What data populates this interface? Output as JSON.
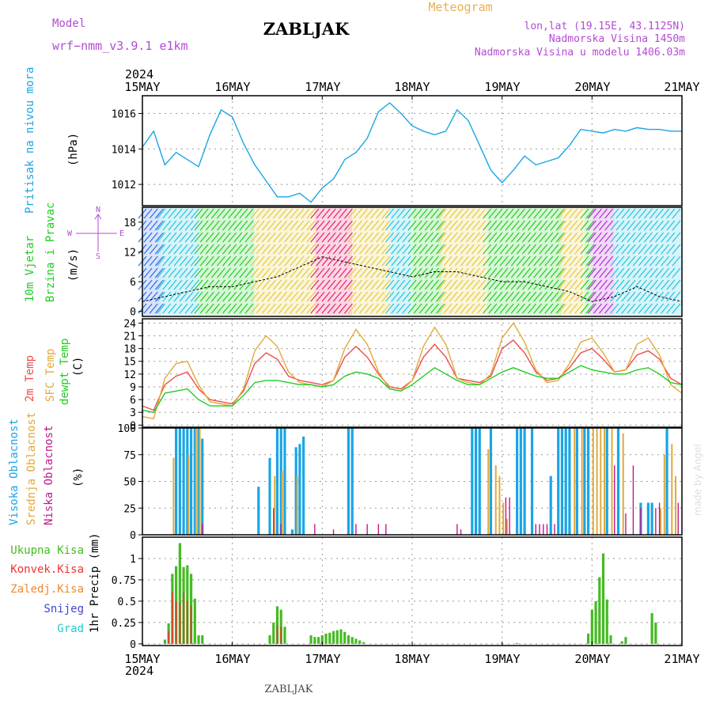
{
  "header": {
    "model_label": "Model",
    "model_name": "wrf−nmm_v3.9.1 e1km",
    "station": "ZABLJAK",
    "product": "Meteogram",
    "lonlat": "lon,lat (19.15E, 43.1125N)",
    "elevation": "Nadmorska Visina 1450m",
    "model_elevation": "Nadmorska Visina u modelu 1406.03m",
    "year": "2024",
    "footer_station": "ZABLJAK",
    "credit": "made by Angel"
  },
  "colors": {
    "pressure": "#1aa5e6",
    "wind_speed": "#000000",
    "temp_2m": "#ef4b4b",
    "temp_sfc": "#e0aa3a",
    "dewpoint": "#22cc22",
    "cloud_high": "#1aa5e6",
    "cloud_mid": "#e0aa3a",
    "cloud_low": "#c0188c",
    "precip_total": "#44bb22",
    "precip_conv": "#ee3333",
    "precip_frozen": "#ee8833",
    "precip_snow": "#4444cc",
    "precip_graupel": "#22cccc",
    "label_purple": "#b44ad6",
    "label_orange": "#e8b050"
  },
  "chart_data": [
    {
      "type": "line",
      "panel": "pressure",
      "ylabel_left": "Pritisak na nivou mora",
      "ylabel_unit": "(hPa)",
      "ylim": [
        1010.8,
        1017.0
      ],
      "yticks": [
        1012,
        1014,
        1016
      ],
      "x_ticks": [
        "15MAY",
        "16MAY",
        "17MAY",
        "18MAY",
        "19MAY",
        "20MAY",
        "21MAY"
      ],
      "x_hours": [
        0,
        3,
        6,
        9,
        12,
        15,
        18,
        21,
        24,
        27,
        30,
        33,
        36,
        39,
        42,
        45,
        48,
        51,
        54,
        57,
        60,
        63,
        66,
        69,
        72,
        75,
        78,
        81,
        84,
        87,
        90,
        93,
        96,
        99,
        102,
        105,
        108,
        111,
        114,
        117,
        120,
        123,
        126,
        129,
        132,
        135,
        138,
        141,
        144
      ],
      "series": [
        {
          "values": [
            1014.1,
            1015.0,
            1013.1,
            1013.8,
            1013.4,
            1013.0,
            1014.8,
            1016.2,
            1015.8,
            1014.3,
            1013.1,
            1012.2,
            1011.3,
            1011.3,
            1011.5,
            1011.0,
            1011.8,
            1012.3,
            1013.4,
            1013.8,
            1014.6,
            1016.1,
            1016.6,
            1016.0,
            1015.3,
            1015.0,
            1014.8,
            1015.0,
            1016.2,
            1015.6,
            1014.2,
            1012.8,
            1012.1,
            1012.8,
            1013.6,
            1013.1,
            1013.3,
            1013.5,
            1014.2,
            1015.1,
            1015.0,
            1014.9,
            1015.1,
            1015.0,
            1015.2,
            1015.1,
            1015.1,
            1015.0,
            1015.0
          ]
        }
      ]
    },
    {
      "type": "line",
      "panel": "wind",
      "ylabel_left": [
        "10m Vjetar",
        "Brzina i Pravac"
      ],
      "ylabel_unit": "(m/s)",
      "compass": {
        "n": "N",
        "w": "W",
        "e": "E",
        "s": "S"
      },
      "ylim": [
        -1.0,
        21.0
      ],
      "yticks": [
        0,
        6,
        12,
        18
      ],
      "x_hours": [
        0,
        6,
        12,
        18,
        24,
        30,
        36,
        42,
        48,
        54,
        60,
        66,
        72,
        78,
        84,
        90,
        96,
        102,
        108,
        114,
        120,
        126,
        132,
        138,
        144
      ],
      "series": [
        {
          "values": [
            2,
            3,
            4,
            5,
            5,
            6,
            7,
            9,
            11,
            10,
            9,
            8,
            7,
            8,
            8,
            7,
            6,
            6,
            5,
            4,
            2,
            3,
            5,
            3,
            2
          ]
        }
      ],
      "arrow_bands": [
        {
          "from": 0,
          "to": 5,
          "color": "#2a6bea"
        },
        {
          "from": 5,
          "to": 15,
          "color": "#22c4dd"
        },
        {
          "from": 15,
          "to": 30,
          "color": "#22cc22"
        },
        {
          "from": 30,
          "to": 46,
          "color": "#e6c83a"
        },
        {
          "from": 46,
          "to": 56,
          "color": "#e8206a"
        },
        {
          "from": 56,
          "to": 66,
          "color": "#e6c83a"
        },
        {
          "from": 66,
          "to": 72,
          "color": "#22c4dd"
        },
        {
          "from": 72,
          "to": 80,
          "color": "#22cc22"
        },
        {
          "from": 80,
          "to": 92,
          "color": "#e6c83a"
        },
        {
          "from": 92,
          "to": 112,
          "color": "#22cc22"
        },
        {
          "from": 112,
          "to": 118,
          "color": "#e6c83a"
        },
        {
          "from": 118,
          "to": 120,
          "color": "#22cc22"
        },
        {
          "from": 120,
          "to": 126,
          "color": "#b02ed6"
        },
        {
          "from": 126,
          "to": 144,
          "color": "#22c4dd"
        }
      ]
    },
    {
      "type": "line",
      "panel": "temperature",
      "ylabel_left": [
        "2m Temp",
        "SFC Temp",
        "dewpt Temp"
      ],
      "ylabel_unit": "(C)",
      "ylim": [
        -0.5,
        25.0
      ],
      "yticks": [
        0,
        3,
        6,
        9,
        12,
        15,
        18,
        21,
        24
      ],
      "x_hours": [
        0,
        3,
        6,
        9,
        12,
        15,
        18,
        21,
        24,
        27,
        30,
        33,
        36,
        39,
        42,
        45,
        48,
        51,
        54,
        57,
        60,
        63,
        66,
        69,
        72,
        75,
        78,
        81,
        84,
        87,
        90,
        93,
        96,
        99,
        102,
        105,
        108,
        111,
        114,
        117,
        120,
        123,
        126,
        129,
        132,
        135,
        138,
        141,
        144
      ],
      "series": [
        {
          "name": "2m Temp",
          "values": [
            4.5,
            3.5,
            9.5,
            11.5,
            12.5,
            8.5,
            6.0,
            5.5,
            5.0,
            8.0,
            14.5,
            17.0,
            15.5,
            11.5,
            10.5,
            10.0,
            9.5,
            10.5,
            16.0,
            18.5,
            16.0,
            12.0,
            9.0,
            8.5,
            10.5,
            16.0,
            19.0,
            16.0,
            11.0,
            10.5,
            10.0,
            11.5,
            18.0,
            20.0,
            17.0,
            12.5,
            10.5,
            11.0,
            13.5,
            17.0,
            18.0,
            15.5,
            12.5,
            13.0,
            16.5,
            17.5,
            15.5,
            11.0,
            9.5
          ]
        },
        {
          "name": "SFC Temp",
          "values": [
            2.0,
            1.5,
            11.0,
            14.5,
            15.0,
            9.5,
            5.5,
            5.0,
            4.5,
            8.5,
            17.5,
            21.0,
            18.5,
            12.5,
            10.0,
            9.5,
            9.0,
            10.5,
            18.0,
            22.5,
            19.0,
            12.5,
            8.5,
            8.0,
            10.5,
            18.5,
            23.0,
            19.0,
            11.0,
            10.0,
            9.5,
            12.0,
            20.5,
            24.0,
            19.5,
            13.0,
            10.0,
            10.5,
            14.5,
            19.5,
            20.5,
            17.0,
            12.5,
            13.0,
            19.0,
            20.5,
            16.5,
            9.5,
            7.5
          ]
        },
        {
          "name": "dewpt Temp",
          "values": [
            3.5,
            3.0,
            7.5,
            8.0,
            8.5,
            6.0,
            4.5,
            4.5,
            4.5,
            7.0,
            10.0,
            10.5,
            10.5,
            10.0,
            9.5,
            9.5,
            9.0,
            9.5,
            11.5,
            12.5,
            12.0,
            11.0,
            8.5,
            8.0,
            9.5,
            11.5,
            13.5,
            12.0,
            10.5,
            9.5,
            9.5,
            11.0,
            12.5,
            13.5,
            12.5,
            11.5,
            11.0,
            11.0,
            12.5,
            14.0,
            13.0,
            12.5,
            12.0,
            12.0,
            13.0,
            13.5,
            12.0,
            10.0,
            9.5
          ]
        }
      ]
    },
    {
      "type": "bar",
      "panel": "clouds",
      "ylabel_left": [
        "Visoka Oblacnost",
        "Srednja Oblacnost",
        "Niska Oblacnost"
      ],
      "ylabel_unit": "(%)",
      "ylim": [
        0,
        100
      ],
      "yticks": [
        0,
        25,
        50,
        75,
        100
      ],
      "series": [
        {
          "name": "Visoka Oblacnost",
          "bars": [
            [
              9,
              100
            ],
            [
              10,
              100
            ],
            [
              11,
              100
            ],
            [
              12,
              100
            ],
            [
              13,
              100
            ],
            [
              14,
              100
            ],
            [
              15,
              100
            ],
            [
              16,
              90
            ],
            [
              31,
              45
            ],
            [
              34,
              72
            ],
            [
              36,
              100
            ],
            [
              37,
              100
            ],
            [
              38,
              100
            ],
            [
              40,
              5
            ],
            [
              41,
              82
            ],
            [
              42,
              85
            ],
            [
              43,
              92
            ],
            [
              55,
              100
            ],
            [
              56,
              100
            ],
            [
              88,
              100
            ],
            [
              89,
              100
            ],
            [
              90,
              100
            ],
            [
              93,
              100
            ],
            [
              100,
              100
            ],
            [
              101,
              100
            ],
            [
              102,
              100
            ],
            [
              104,
              100
            ],
            [
              109,
              55
            ],
            [
              111,
              100
            ],
            [
              112,
              100
            ],
            [
              113,
              100
            ],
            [
              114,
              100
            ],
            [
              116,
              100
            ],
            [
              118,
              100
            ],
            [
              119,
              100
            ],
            [
              124,
              100
            ],
            [
              127,
              100
            ],
            [
              133,
              30
            ],
            [
              135,
              30
            ],
            [
              136,
              30
            ],
            [
              140,
              100
            ]
          ]
        },
        {
          "name": "Srednja Oblacnost",
          "bars": [
            [
              8,
              72
            ],
            [
              12,
              75
            ],
            [
              14,
              100
            ],
            [
              15,
              100
            ],
            [
              35,
              55
            ],
            [
              37,
              60
            ],
            [
              41,
              55
            ],
            [
              92,
              80
            ],
            [
              94,
              65
            ],
            [
              95,
              55
            ],
            [
              96,
              30
            ],
            [
              97,
              15
            ],
            [
              115,
              100
            ],
            [
              117,
              100
            ],
            [
              120,
              100
            ],
            [
              121,
              100
            ],
            [
              122,
              100
            ],
            [
              123,
              100
            ],
            [
              125,
              100
            ],
            [
              128,
              95
            ],
            [
              138,
              25
            ],
            [
              139,
              75
            ],
            [
              141,
              85
            ],
            [
              142,
              55
            ]
          ]
        },
        {
          "name": "Niska Oblacnost",
          "bars": [
            [
              16,
              10
            ],
            [
              35,
              25
            ],
            [
              37,
              10
            ],
            [
              46,
              10
            ],
            [
              51,
              5
            ],
            [
              57,
              10
            ],
            [
              60,
              10
            ],
            [
              63,
              10
            ],
            [
              65,
              10
            ],
            [
              84,
              10
            ],
            [
              85,
              5
            ],
            [
              97,
              35
            ],
            [
              98,
              35
            ],
            [
              105,
              10
            ],
            [
              106,
              10
            ],
            [
              107,
              10
            ],
            [
              108,
              10
            ],
            [
              110,
              10
            ],
            [
              126,
              65
            ],
            [
              129,
              20
            ],
            [
              131,
              65
            ],
            [
              133,
              25
            ],
            [
              137,
              25
            ],
            [
              138,
              30
            ],
            [
              143,
              30
            ]
          ]
        }
      ]
    },
    {
      "type": "bar",
      "panel": "precipitation",
      "ylabel_unit": "1hr Precip (mm)",
      "legend": [
        "Ukupna Kisa",
        "Konvek.Kisa",
        "Zaledj.Kisa",
        "Snijeg",
        "Grad"
      ],
      "ylim": [
        -0.02,
        1.25
      ],
      "yticks": [
        0,
        0.25,
        0.5,
        0.75,
        1
      ],
      "ytick_labels": [
        "0",
        "0.25",
        "0.5",
        "0.75",
        "1"
      ],
      "series": [
        {
          "name": "Ukupna Kisa",
          "bars": [
            [
              6,
              0.05
            ],
            [
              7,
              0.24
            ],
            [
              8,
              0.82
            ],
            [
              9,
              0.91
            ],
            [
              10,
              1.18
            ],
            [
              11,
              0.9
            ],
            [
              12,
              0.92
            ],
            [
              13,
              0.82
            ],
            [
              14,
              0.53
            ],
            [
              15,
              0.1
            ],
            [
              16,
              0.1
            ],
            [
              34,
              0.1
            ],
            [
              35,
              0.25
            ],
            [
              36,
              0.44
            ],
            [
              37,
              0.4
            ],
            [
              38,
              0.2
            ],
            [
              45,
              0.1
            ],
            [
              46,
              0.08
            ],
            [
              47,
              0.08
            ],
            [
              48,
              0.1
            ],
            [
              49,
              0.12
            ],
            [
              50,
              0.13
            ],
            [
              51,
              0.15
            ],
            [
              52,
              0.16
            ],
            [
              53,
              0.17
            ],
            [
              54,
              0.14
            ],
            [
              55,
              0.1
            ],
            [
              56,
              0.08
            ],
            [
              57,
              0.06
            ],
            [
              58,
              0.04
            ],
            [
              59,
              0.02
            ],
            [
              100,
              0.01
            ],
            [
              119,
              0.12
            ],
            [
              120,
              0.4
            ],
            [
              121,
              0.5
            ],
            [
              122,
              0.78
            ],
            [
              123,
              1.06
            ],
            [
              124,
              0.52
            ],
            [
              125,
              0.1
            ],
            [
              128,
              0.03
            ],
            [
              129,
              0.08
            ],
            [
              136,
              0.36
            ],
            [
              137,
              0.25
            ]
          ]
        },
        {
          "name": "Konvek.Kisa",
          "bars": [
            [
              7,
              0.15
            ],
            [
              8,
              0.6
            ],
            [
              9,
              0.5
            ],
            [
              10,
              0.48
            ],
            [
              11,
              0.6
            ],
            [
              12,
              0.5
            ],
            [
              13,
              0.45
            ],
            [
              36,
              0.22
            ],
            [
              37,
              0.2
            ]
          ]
        }
      ]
    }
  ]
}
